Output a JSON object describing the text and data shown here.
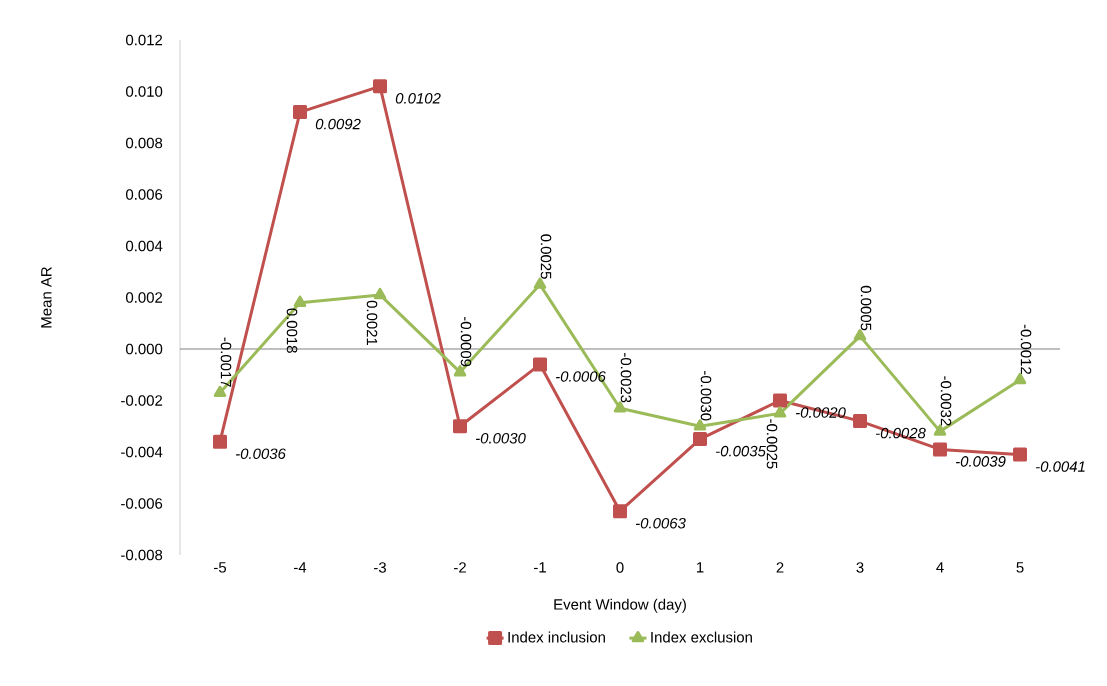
{
  "chart_data": {
    "type": "line",
    "xlabel": "Event Window (day)",
    "ylabel": "Mean AR",
    "categories": [
      "-5",
      "-4",
      "-3",
      "-2",
      "-1",
      "0",
      "1",
      "2",
      "3",
      "4",
      "5"
    ],
    "series": [
      {
        "name": "Index inclusion",
        "color": "#c0504d",
        "marker": "square",
        "values": [
          -0.0036,
          0.0092,
          0.0102,
          -0.003,
          -0.0006,
          -0.0063,
          -0.0035,
          -0.002,
          -0.0028,
          -0.0039,
          -0.0041
        ],
        "value_labels": [
          "-0.0036",
          "0.0092",
          "0.0102",
          "-0.0030",
          "-0.0006",
          "-0.0063",
          "-0.0035",
          "-0.0020",
          "-0.0028",
          "-0.0039",
          "-0.0041"
        ]
      },
      {
        "name": "Index exclusion",
        "color": "#9bbb59",
        "marker": "triangle",
        "values": [
          -0.0017,
          0.0018,
          0.0021,
          -0.0009,
          0.0025,
          -0.0023,
          -0.003,
          -0.0025,
          0.0005,
          -0.0032,
          -0.0012
        ],
        "value_labels": [
          "-0.0017",
          "0.0018",
          "0.0021",
          "-0.0009",
          "0.0025",
          "-0.0023",
          "-0.0030",
          "-0.0025",
          "0.0005",
          "-0.0032",
          "-0.0012"
        ]
      }
    ],
    "ylim": [
      -0.008,
      0.012
    ],
    "yticks": [
      {
        "value": -0.008,
        "label": "-0.008"
      },
      {
        "value": -0.006,
        "label": "-0.006"
      },
      {
        "value": -0.004,
        "label": "-0.004"
      },
      {
        "value": -0.002,
        "label": "-0.002"
      },
      {
        "value": 0,
        "label": "0.000"
      },
      {
        "value": 0.002,
        "label": "0.002"
      },
      {
        "value": 0.004,
        "label": "0.004"
      },
      {
        "value": 0.006,
        "label": "0.006"
      },
      {
        "value": 0.008,
        "label": "0.008"
      },
      {
        "value": 0.01,
        "label": "0.010"
      },
      {
        "value": 0.012,
        "label": "0.012"
      }
    ],
    "legend": "bottom",
    "line_style": "solid"
  }
}
